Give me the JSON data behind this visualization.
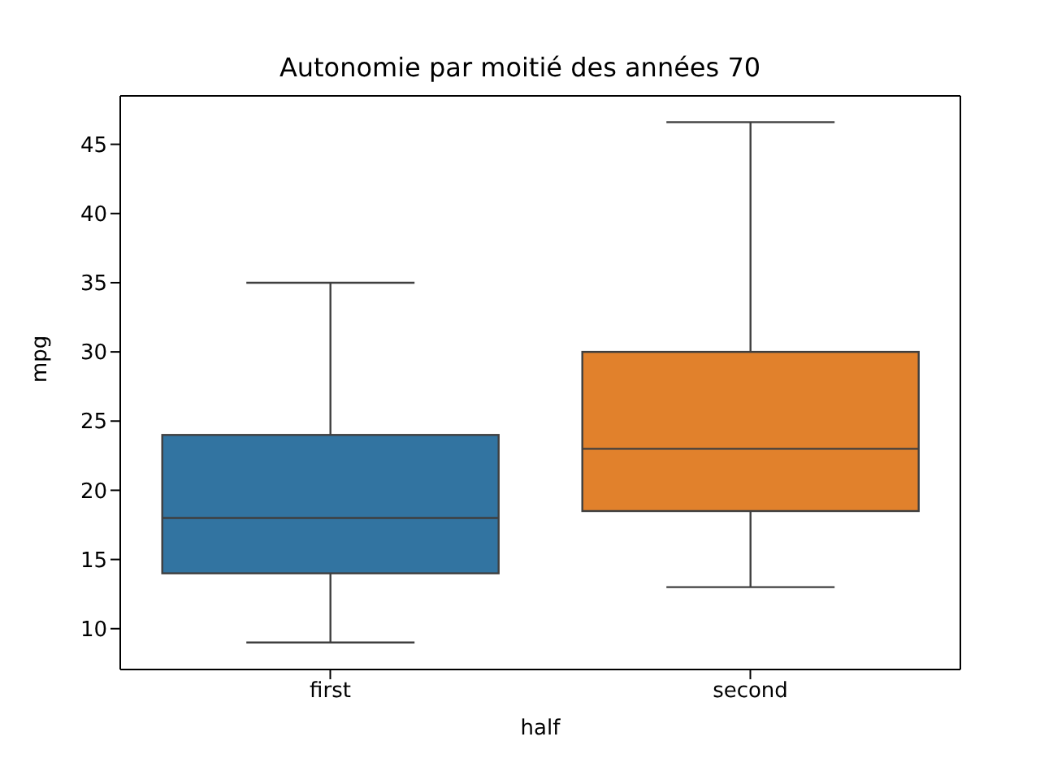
{
  "chart_data": {
    "type": "box",
    "title": "Autonomie par moitié des années 70",
    "xlabel": "half",
    "ylabel": "mpg",
    "categories": [
      "first",
      "second"
    ],
    "boxes": [
      {
        "low": 9,
        "q1": 14,
        "median": 18,
        "q3": 24,
        "high": 35
      },
      {
        "low": 13,
        "q1": 18.5,
        "median": 23,
        "q3": 30,
        "high": 46.6
      }
    ],
    "colors": [
      "#3274a1",
      "#e1812c"
    ],
    "ylim": [
      7.05,
      48.5
    ],
    "yticks": [
      10,
      15,
      20,
      25,
      30,
      35,
      40,
      45
    ],
    "grid": false,
    "legend": false
  }
}
